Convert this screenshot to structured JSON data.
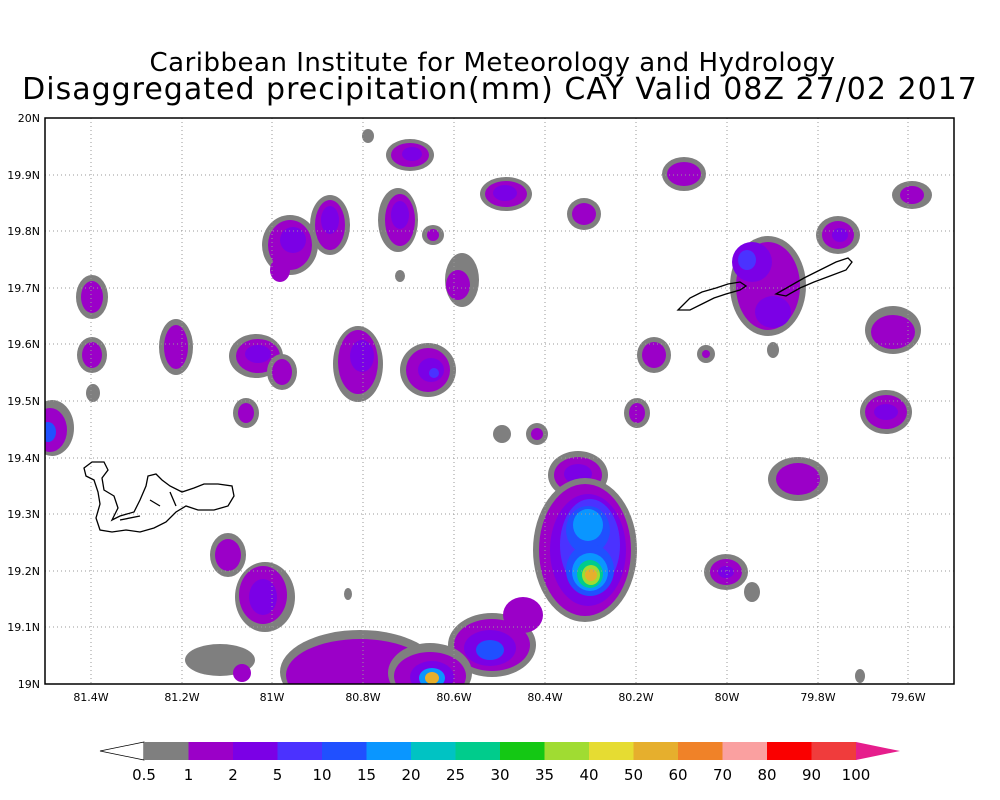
{
  "header": {
    "line1": "Caribbean Institute for Meteorology and Hydrology",
    "line2": "Disaggregated precipitation(mm) CAY Valid 08Z 27/02 2017"
  },
  "map": {
    "lon_range": [
      -81.5,
      -79.5
    ],
    "lat_range": [
      19.0,
      20.0
    ],
    "grid": "dotted",
    "lat_ticks": [
      "20N",
      "19.9N",
      "19.8N",
      "19.7N",
      "19.6N",
      "19.5N",
      "19.4N",
      "19.3N",
      "19.2N",
      "19.1N",
      "19N"
    ],
    "lon_ticks": [
      "81.4W",
      "81.2W",
      "81W",
      "80.8W",
      "80.6W",
      "80.4W",
      "80.2W",
      "80W",
      "79.8W",
      "79.6W"
    ]
  },
  "colorbar": {
    "labels": [
      "0.5",
      "1",
      "2",
      "5",
      "10",
      "15",
      "20",
      "25",
      "30",
      "35",
      "40",
      "50",
      "60",
      "70",
      "80",
      "90",
      "100"
    ],
    "colors": [
      "#7f7f7f",
      "#9b00c8",
      "#7b00e6",
      "#4b32ff",
      "#2050ff",
      "#0a96ff",
      "#00c3c3",
      "#00cc8c",
      "#14c814",
      "#a0dc32",
      "#e6dc32",
      "#e6af2d",
      "#f08228",
      "#faa0a0",
      "#fa0000",
      "#f03c3c",
      "#e61e8c"
    ]
  },
  "features": {
    "islands": [
      "Grand Cayman",
      "Little Cayman",
      "Cayman Brac"
    ]
  }
}
